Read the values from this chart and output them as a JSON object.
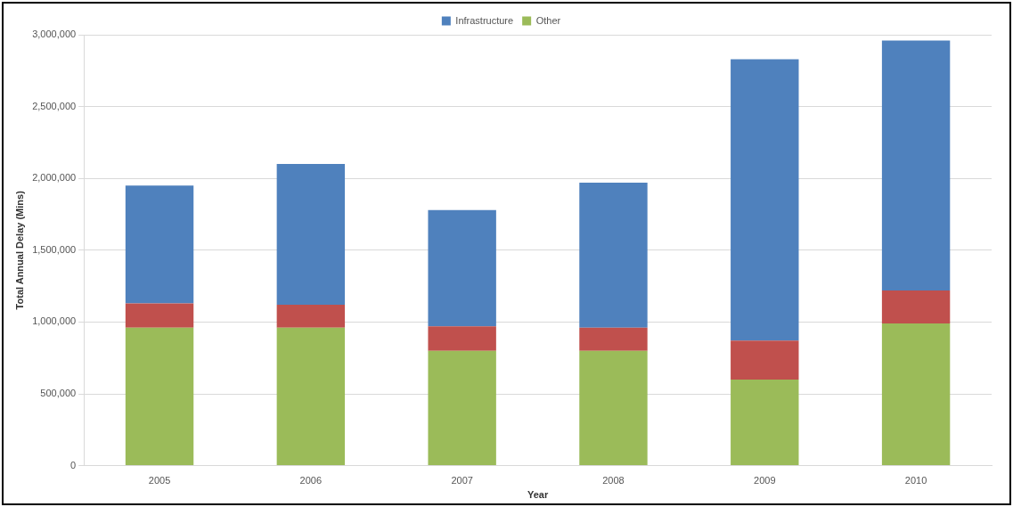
{
  "chart_data": {
    "type": "bar",
    "stacked": true,
    "xlabel": "Year",
    "ylabel": "Total Annual Delay (Mins)",
    "categories": [
      "2005",
      "2006",
      "2007",
      "2008",
      "2009",
      "2010"
    ],
    "series": [
      {
        "name": "Other",
        "color": "#9bbb59",
        "values": [
          960000,
          960000,
          800000,
          800000,
          600000,
          990000
        ]
      },
      {
        "color": "#c0504d",
        "values": [
          170000,
          160000,
          170000,
          160000,
          270000,
          230000
        ]
      },
      {
        "name": "Infrastructure",
        "color": "#4f81bd",
        "values": [
          820000,
          980000,
          810000,
          1010000,
          1960000,
          1740000
        ]
      }
    ],
    "ylim": [
      0,
      3000000
    ],
    "yticks": [
      {
        "value": 0,
        "label": "0"
      },
      {
        "value": 500000,
        "label": "500,000"
      },
      {
        "value": 1000000,
        "label": "1,000,000"
      },
      {
        "value": 1500000,
        "label": "1,500,000"
      },
      {
        "value": 2000000,
        "label": "2,000,000"
      },
      {
        "value": 2500000,
        "label": "2,500,000"
      },
      {
        "value": 3000000,
        "label": "3,000,000"
      }
    ],
    "grid": "y",
    "legend": "top"
  }
}
